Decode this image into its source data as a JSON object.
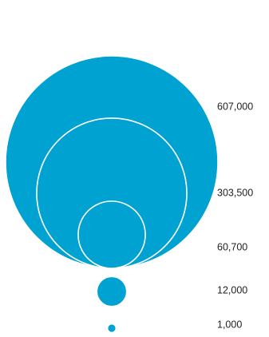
{
  "chart_data": {
    "type": "bubble",
    "title": "",
    "color": "#00a2d1",
    "label_color": "#222222",
    "values": [
      607000,
      303500,
      60700,
      12000,
      1000
    ],
    "labels": [
      "607,000",
      "303,500",
      "60,700",
      "12,000",
      "1,000"
    ]
  }
}
